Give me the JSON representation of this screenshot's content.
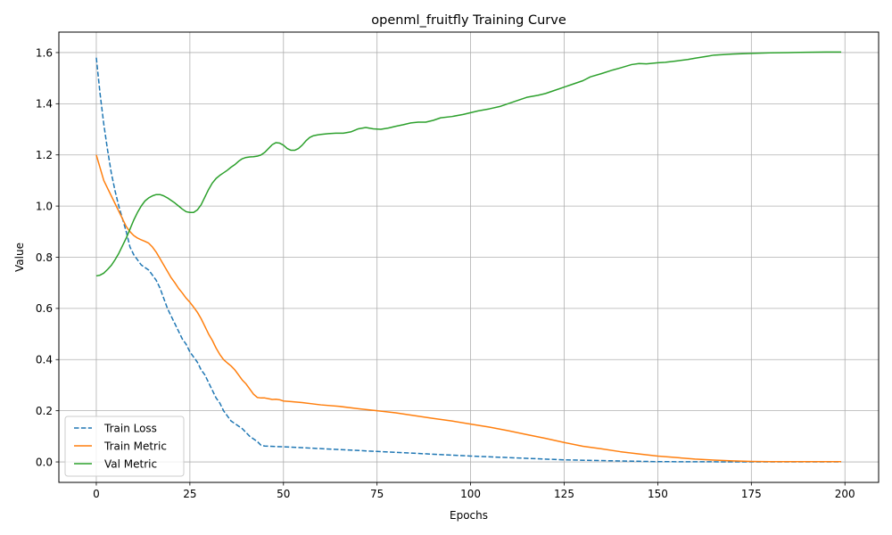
{
  "chart_data": {
    "type": "line",
    "title": "openml_fruitfly Training Curve",
    "xlabel": "Epochs",
    "ylabel": "Value",
    "xlim": [
      -10,
      209
    ],
    "ylim": [
      -0.08,
      1.68
    ],
    "xticks": [
      0,
      25,
      50,
      75,
      100,
      125,
      150,
      175,
      200
    ],
    "yticks": [
      0.0,
      0.2,
      0.4,
      0.6,
      0.8,
      1.0,
      1.2,
      1.4,
      1.6
    ],
    "ytick_labels": [
      "0.0",
      "0.2",
      "0.4",
      "0.6",
      "0.8",
      "1.0",
      "1.2",
      "1.4",
      "1.6"
    ],
    "grid": true,
    "legend_position": "lower-left",
    "series": [
      {
        "name": "Train Loss",
        "color": "#1f77b4",
        "dash": "dashed",
        "points": [
          [
            0,
            1.58
          ],
          [
            1,
            1.44
          ],
          [
            2,
            1.32
          ],
          [
            3,
            1.22
          ],
          [
            4,
            1.13
          ],
          [
            5,
            1.06
          ],
          [
            6,
            1.0
          ],
          [
            7,
            0.95
          ],
          [
            8,
            0.9
          ],
          [
            9,
            0.84
          ],
          [
            10,
            0.81
          ],
          [
            11,
            0.79
          ],
          [
            12,
            0.77
          ],
          [
            13,
            0.76
          ],
          [
            14,
            0.75
          ],
          [
            15,
            0.73
          ],
          [
            16,
            0.71
          ],
          [
            17,
            0.68
          ],
          [
            18,
            0.64
          ],
          [
            19,
            0.6
          ],
          [
            20,
            0.57
          ],
          [
            21,
            0.54
          ],
          [
            22,
            0.51
          ],
          [
            23,
            0.48
          ],
          [
            24,
            0.46
          ],
          [
            25,
            0.43
          ],
          [
            26,
            0.41
          ],
          [
            27,
            0.39
          ],
          [
            28,
            0.36
          ],
          [
            29,
            0.34
          ],
          [
            30,
            0.31
          ],
          [
            31,
            0.28
          ],
          [
            32,
            0.25
          ],
          [
            33,
            0.23
          ],
          [
            34,
            0.2
          ],
          [
            35,
            0.18
          ],
          [
            36,
            0.16
          ],
          [
            37,
            0.15
          ],
          [
            38,
            0.14
          ],
          [
            39,
            0.13
          ],
          [
            40,
            0.115
          ],
          [
            41,
            0.1
          ],
          [
            42,
            0.09
          ],
          [
            43,
            0.08
          ],
          [
            44,
            0.065
          ],
          [
            45,
            0.062
          ],
          [
            50,
            0.059
          ],
          [
            60,
            0.052
          ],
          [
            75,
            0.041
          ],
          [
            100,
            0.023
          ],
          [
            125,
            0.008
          ],
          [
            150,
            0.001
          ],
          [
            175,
            0.0
          ],
          [
            199,
            0.0
          ]
        ]
      },
      {
        "name": "Train Metric",
        "color": "#ff7f0e",
        "dash": "solid",
        "points": [
          [
            0,
            1.2
          ],
          [
            1,
            1.15
          ],
          [
            2,
            1.1
          ],
          [
            3,
            1.07
          ],
          [
            4,
            1.04
          ],
          [
            5,
            1.01
          ],
          [
            6,
            0.98
          ],
          [
            7,
            0.95
          ],
          [
            8,
            0.92
          ],
          [
            9,
            0.9
          ],
          [
            10,
            0.885
          ],
          [
            11,
            0.875
          ],
          [
            12,
            0.868
          ],
          [
            13,
            0.862
          ],
          [
            14,
            0.855
          ],
          [
            15,
            0.84
          ],
          [
            16,
            0.82
          ],
          [
            17,
            0.795
          ],
          [
            18,
            0.77
          ],
          [
            19,
            0.745
          ],
          [
            20,
            0.72
          ],
          [
            21,
            0.7
          ],
          [
            22,
            0.678
          ],
          [
            23,
            0.66
          ],
          [
            24,
            0.64
          ],
          [
            25,
            0.624
          ],
          [
            26,
            0.605
          ],
          [
            27,
            0.585
          ],
          [
            28,
            0.56
          ],
          [
            29,
            0.53
          ],
          [
            30,
            0.5
          ],
          [
            31,
            0.475
          ],
          [
            32,
            0.445
          ],
          [
            33,
            0.42
          ],
          [
            34,
            0.4
          ],
          [
            35,
            0.387
          ],
          [
            36,
            0.375
          ],
          [
            37,
            0.36
          ],
          [
            38,
            0.34
          ],
          [
            39,
            0.32
          ],
          [
            40,
            0.305
          ],
          [
            41,
            0.285
          ],
          [
            42,
            0.265
          ],
          [
            43,
            0.252
          ],
          [
            44,
            0.25
          ],
          [
            45,
            0.25
          ],
          [
            46,
            0.247
          ],
          [
            47,
            0.244
          ],
          [
            48,
            0.245
          ],
          [
            49,
            0.243
          ],
          [
            50,
            0.238
          ],
          [
            52,
            0.236
          ],
          [
            55,
            0.232
          ],
          [
            60,
            0.223
          ],
          [
            65,
            0.217
          ],
          [
            70,
            0.208
          ],
          [
            75,
            0.2
          ],
          [
            80,
            0.192
          ],
          [
            85,
            0.181
          ],
          [
            90,
            0.17
          ],
          [
            95,
            0.16
          ],
          [
            100,
            0.148
          ],
          [
            105,
            0.136
          ],
          [
            110,
            0.122
          ],
          [
            115,
            0.107
          ],
          [
            120,
            0.092
          ],
          [
            125,
            0.076
          ],
          [
            130,
            0.061
          ],
          [
            135,
            0.051
          ],
          [
            140,
            0.04
          ],
          [
            145,
            0.031
          ],
          [
            150,
            0.023
          ],
          [
            155,
            0.017
          ],
          [
            160,
            0.011
          ],
          [
            165,
            0.007
          ],
          [
            170,
            0.004
          ],
          [
            175,
            0.002
          ],
          [
            180,
            0.001
          ],
          [
            190,
            0.001
          ],
          [
            199,
            0.001
          ]
        ]
      },
      {
        "name": "Val Metric",
        "color": "#2ca02c",
        "dash": "solid",
        "points": [
          [
            0,
            0.727
          ],
          [
            1,
            0.73
          ],
          [
            2,
            0.738
          ],
          [
            3,
            0.752
          ],
          [
            4,
            0.768
          ],
          [
            5,
            0.79
          ],
          [
            6,
            0.815
          ],
          [
            7,
            0.845
          ],
          [
            8,
            0.875
          ],
          [
            9,
            0.91
          ],
          [
            10,
            0.945
          ],
          [
            11,
            0.975
          ],
          [
            12,
            1.0
          ],
          [
            13,
            1.02
          ],
          [
            14,
            1.032
          ],
          [
            15,
            1.04
          ],
          [
            16,
            1.045
          ],
          [
            17,
            1.045
          ],
          [
            18,
            1.04
          ],
          [
            19,
            1.032
          ],
          [
            20,
            1.022
          ],
          [
            21,
            1.012
          ],
          [
            22,
            1.0
          ],
          [
            23,
            0.988
          ],
          [
            24,
            0.978
          ],
          [
            25,
            0.975
          ],
          [
            26,
            0.975
          ],
          [
            27,
            0.985
          ],
          [
            28,
            1.005
          ],
          [
            29,
            1.035
          ],
          [
            30,
            1.065
          ],
          [
            31,
            1.09
          ],
          [
            32,
            1.108
          ],
          [
            33,
            1.12
          ],
          [
            34,
            1.13
          ],
          [
            35,
            1.14
          ],
          [
            36,
            1.152
          ],
          [
            37,
            1.162
          ],
          [
            38,
            1.175
          ],
          [
            39,
            1.185
          ],
          [
            40,
            1.19
          ],
          [
            41,
            1.192
          ],
          [
            42,
            1.193
          ],
          [
            43,
            1.195
          ],
          [
            44,
            1.2
          ],
          [
            45,
            1.21
          ],
          [
            46,
            1.225
          ],
          [
            47,
            1.24
          ],
          [
            48,
            1.248
          ],
          [
            49,
            1.246
          ],
          [
            50,
            1.238
          ],
          [
            51,
            1.225
          ],
          [
            52,
            1.218
          ],
          [
            53,
            1.218
          ],
          [
            54,
            1.225
          ],
          [
            55,
            1.238
          ],
          [
            56,
            1.255
          ],
          [
            57,
            1.268
          ],
          [
            58,
            1.275
          ],
          [
            59,
            1.278
          ],
          [
            60,
            1.28
          ],
          [
            62,
            1.283
          ],
          [
            64,
            1.285
          ],
          [
            66,
            1.285
          ],
          [
            68,
            1.29
          ],
          [
            70,
            1.302
          ],
          [
            72,
            1.307
          ],
          [
            74,
            1.302
          ],
          [
            76,
            1.3
          ],
          [
            78,
            1.305
          ],
          [
            80,
            1.312
          ],
          [
            82,
            1.318
          ],
          [
            84,
            1.325
          ],
          [
            86,
            1.328
          ],
          [
            88,
            1.328
          ],
          [
            90,
            1.335
          ],
          [
            92,
            1.345
          ],
          [
            95,
            1.35
          ],
          [
            98,
            1.358
          ],
          [
            100,
            1.365
          ],
          [
            102,
            1.372
          ],
          [
            105,
            1.38
          ],
          [
            108,
            1.39
          ],
          [
            110,
            1.4
          ],
          [
            112,
            1.41
          ],
          [
            115,
            1.425
          ],
          [
            118,
            1.433
          ],
          [
            120,
            1.44
          ],
          [
            122,
            1.45
          ],
          [
            125,
            1.465
          ],
          [
            128,
            1.48
          ],
          [
            130,
            1.49
          ],
          [
            132,
            1.505
          ],
          [
            135,
            1.518
          ],
          [
            138,
            1.532
          ],
          [
            140,
            1.54
          ],
          [
            143,
            1.553
          ],
          [
            145,
            1.557
          ],
          [
            147,
            1.556
          ],
          [
            150,
            1.56
          ],
          [
            152,
            1.562
          ],
          [
            155,
            1.567
          ],
          [
            158,
            1.573
          ],
          [
            160,
            1.578
          ],
          [
            163,
            1.585
          ],
          [
            165,
            1.59
          ],
          [
            170,
            1.594
          ],
          [
            175,
            1.597
          ],
          [
            180,
            1.599
          ],
          [
            185,
            1.6
          ],
          [
            190,
            1.601
          ],
          [
            195,
            1.602
          ],
          [
            199,
            1.602
          ]
        ]
      }
    ]
  }
}
